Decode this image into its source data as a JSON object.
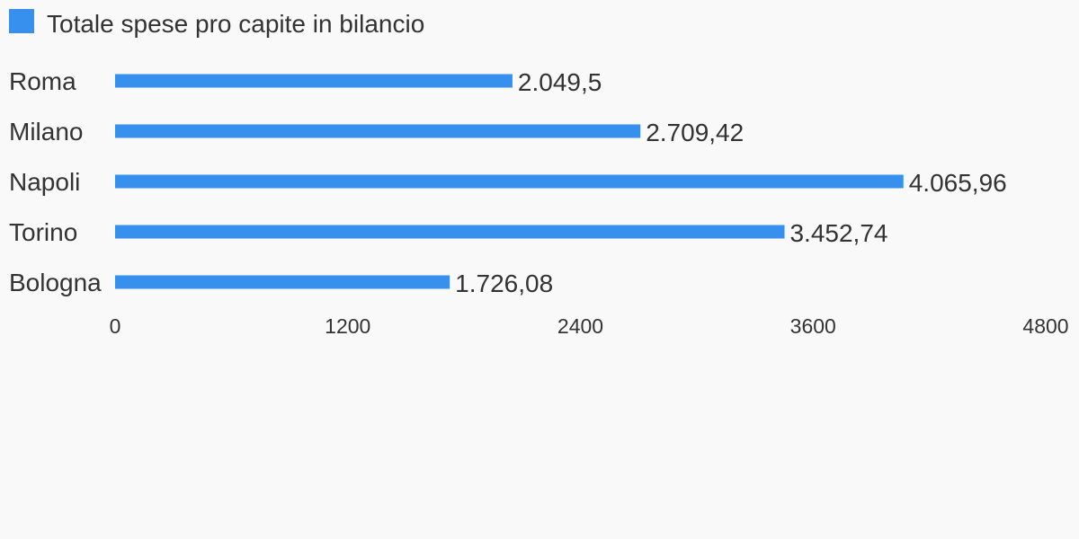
{
  "chart_data": {
    "type": "bar",
    "orientation": "horizontal",
    "categories": [
      "Roma",
      "Milano",
      "Napoli",
      "Torino",
      "Bologna"
    ],
    "series": [
      {
        "name": "Totale spese pro capite in bilancio",
        "values": [
          2049.5,
          2709.42,
          4065.96,
          3452.74,
          1726.08
        ],
        "value_labels": [
          "2.049,5",
          "2.709,42",
          "4.065,96",
          "3.452,74",
          "1.726,08"
        ],
        "color": "#3790ee"
      }
    ],
    "xlim": [
      0,
      4800
    ],
    "xticks": [
      0,
      1200,
      2400,
      3600,
      4800
    ],
    "xtick_labels": [
      "0",
      "1200",
      "2400",
      "3600",
      "4800"
    ],
    "title": "",
    "xlabel": "",
    "ylabel": "",
    "grid": false,
    "legend": "top-left"
  },
  "colors": {
    "background": "#f9f9f9",
    "bar": "#3790ee",
    "text": "#333333"
  }
}
